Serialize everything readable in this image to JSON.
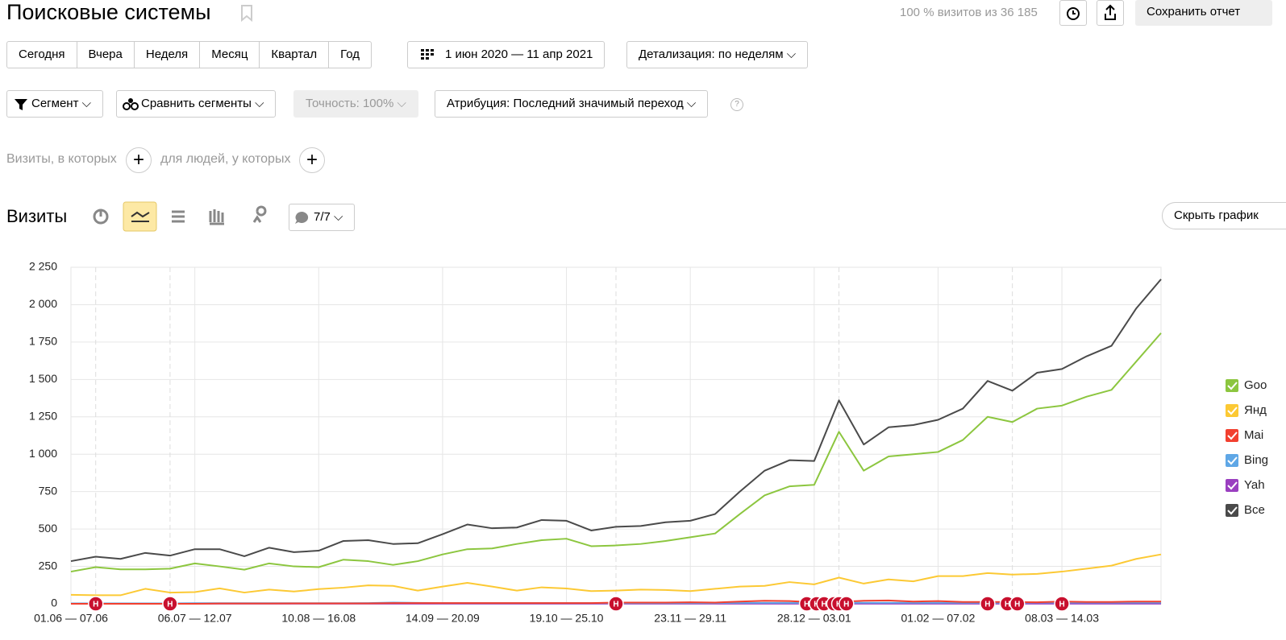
{
  "header": {
    "title": "Поисковые системы",
    "visits_note": "100 % визитов из 36 185",
    "save": "Сохранить отчет"
  },
  "periods": [
    "Сегодня",
    "Вчера",
    "Неделя",
    "Месяц",
    "Квартал",
    "Год"
  ],
  "date_range": "1 июн 2020 — 11 апр 2021",
  "detail": "Детализация: по неделям",
  "filters": {
    "segment": "Сегмент",
    "compare": "Сравнить сегменты",
    "accuracy": "Точность: 100%",
    "attribution": "Атрибуция: Последний значимый переход",
    "help": "?"
  },
  "conditions": {
    "visits": "Визиты, в которых",
    "people": "для людей, у которых"
  },
  "metric": {
    "title": "Визиты",
    "notes": "7/7",
    "hide": "Скрыть график"
  },
  "annotation_label": "Н",
  "chart_data": {
    "type": "line",
    "categories": [
      "01.06 — 07.06",
      null,
      null,
      null,
      null,
      "06.07 — 12.07",
      null,
      null,
      null,
      null,
      "10.08 — 16.08",
      null,
      null,
      null,
      null,
      "14.09 — 20.09",
      null,
      null,
      null,
      null,
      "19.10 — 25.10",
      null,
      null,
      null,
      null,
      "23.11 — 29.11",
      null,
      null,
      null,
      null,
      "28.12 — 03.01",
      null,
      null,
      null,
      null,
      "01.02 — 07.02",
      null,
      null,
      null,
      null,
      "08.03 — 14.03",
      null,
      null,
      null,
      null
    ],
    "ylim": [
      0,
      2250
    ],
    "yticks": [
      0,
      250,
      500,
      750,
      {
        "value": 1000,
        "label": "1 000"
      },
      {
        "value": 1250,
        "label": "1 250"
      },
      {
        "value": 1500,
        "label": "1 500"
      },
      {
        "value": 1750,
        "label": "1 750"
      },
      {
        "value": 2000,
        "label": "2 000"
      },
      {
        "value": 2250,
        "label": "2 250"
      }
    ],
    "grid": true,
    "legend": "right",
    "series": [
      {
        "name": "Goo",
        "color": "#8cc63f",
        "values": [
          215,
          245,
          230,
          230,
          235,
          270,
          250,
          228,
          270,
          250,
          245,
          295,
          285,
          260,
          285,
          330,
          365,
          370,
          400,
          425,
          435,
          385,
          390,
          400,
          420,
          445,
          470,
          600,
          725,
          785,
          795,
          1150,
          890,
          985,
          1000,
          1015,
          1095,
          1250,
          1215,
          1305,
          1325,
          1385,
          1430,
          1620,
          1810
        ]
      },
      {
        "name": "Янд",
        "color": "#fcc934",
        "values": [
          60,
          57,
          57,
          100,
          75,
          78,
          103,
          75,
          95,
          82,
          98,
          108,
          123,
          120,
          88,
          115,
          140,
          115,
          88,
          110,
          102,
          85,
          88,
          95,
          92,
          85,
          100,
          115,
          120,
          145,
          130,
          175,
          135,
          163,
          150,
          185,
          185,
          205,
          195,
          200,
          215,
          235,
          255,
          300,
          330
        ]
      },
      {
        "name": "Mai",
        "color": "#f2402f",
        "values": [
          0,
          0,
          0,
          0,
          0,
          0,
          2,
          2,
          2,
          3,
          3,
          3,
          3,
          5,
          5,
          5,
          5,
          5,
          5,
          5,
          5,
          5,
          8,
          8,
          8,
          10,
          8,
          15,
          20,
          18,
          10,
          12,
          20,
          22,
          15,
          18,
          12,
          12,
          12,
          10,
          15,
          12,
          12,
          15,
          15
        ]
      },
      {
        "name": "Bing",
        "color": "#5fa7e6",
        "values": [
          3,
          3,
          3,
          3,
          3,
          4,
          4,
          4,
          4,
          4,
          4,
          4,
          5,
          8,
          6,
          5,
          5,
          5,
          5,
          5,
          5,
          5,
          5,
          5,
          5,
          5,
          5,
          6,
          6,
          6,
          6,
          7,
          7,
          7,
          7,
          7,
          7,
          7,
          7,
          8,
          8,
          8,
          8,
          8,
          8
        ]
      },
      {
        "name": "Yah",
        "color": "#9a3fc0",
        "values": [
          1,
          1,
          1,
          1,
          1,
          1,
          1,
          1,
          1,
          1,
          1,
          1,
          1,
          1,
          1,
          1,
          1,
          1,
          1,
          1,
          1,
          1,
          1,
          1,
          1,
          1,
          1,
          1,
          1,
          1,
          1,
          1,
          1,
          1,
          1,
          1,
          1,
          1,
          1,
          1,
          1,
          1,
          1,
          1,
          1
        ]
      },
      {
        "name": "Все",
        "color": "#4a4a4a",
        "values": [
          285,
          315,
          300,
          340,
          322,
          365,
          365,
          318,
          375,
          345,
          355,
          420,
          425,
          400,
          405,
          465,
          530,
          505,
          510,
          560,
          555,
          490,
          515,
          520,
          545,
          555,
          600,
          750,
          890,
          960,
          955,
          1360,
          1065,
          1180,
          1195,
          1230,
          1305,
          1490,
          1425,
          1545,
          1570,
          1655,
          1725,
          1975,
          2170
        ]
      }
    ]
  }
}
